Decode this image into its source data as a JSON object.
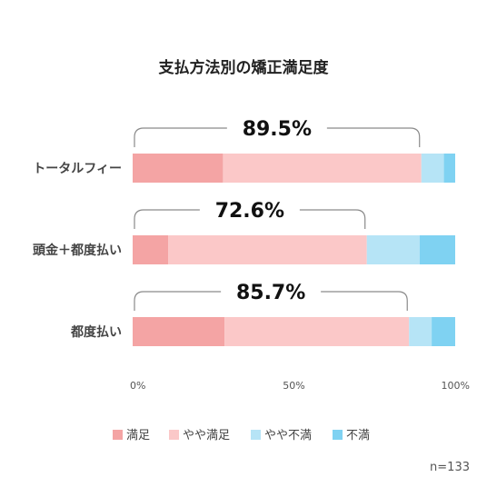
{
  "chart_data": {
    "type": "bar",
    "orientation": "horizontal",
    "stacked": true,
    "title": "支払方法別の矯正満足度",
    "categories": [
      "トータルフィー",
      "頭金＋都度払い",
      "都度払い"
    ],
    "series": [
      {
        "name": "満足",
        "values": [
          28,
          11,
          28.5
        ]
      },
      {
        "name": "やや満足",
        "values": [
          61.5,
          61.6,
          57.2
        ]
      },
      {
        "name": "やや不満",
        "values": [
          7,
          16.4,
          7
        ]
      },
      {
        "name": "不満",
        "values": [
          3.5,
          11,
          7.3
        ]
      }
    ],
    "satisfaction_totals": [
      "89.5%",
      "72.6%",
      "85.7%"
    ],
    "satisfaction_totals_values": [
      89.5,
      72.6,
      85.7
    ],
    "x_ticks": [
      "0%",
      "50%",
      "100%"
    ],
    "xlim": [
      0,
      100
    ],
    "grid": false,
    "legend_position": "bottom",
    "note": "n=133",
    "colors": [
      "#f4a4a4",
      "#fbc8c8",
      "#b6e4f6",
      "#7fd2f2"
    ]
  }
}
